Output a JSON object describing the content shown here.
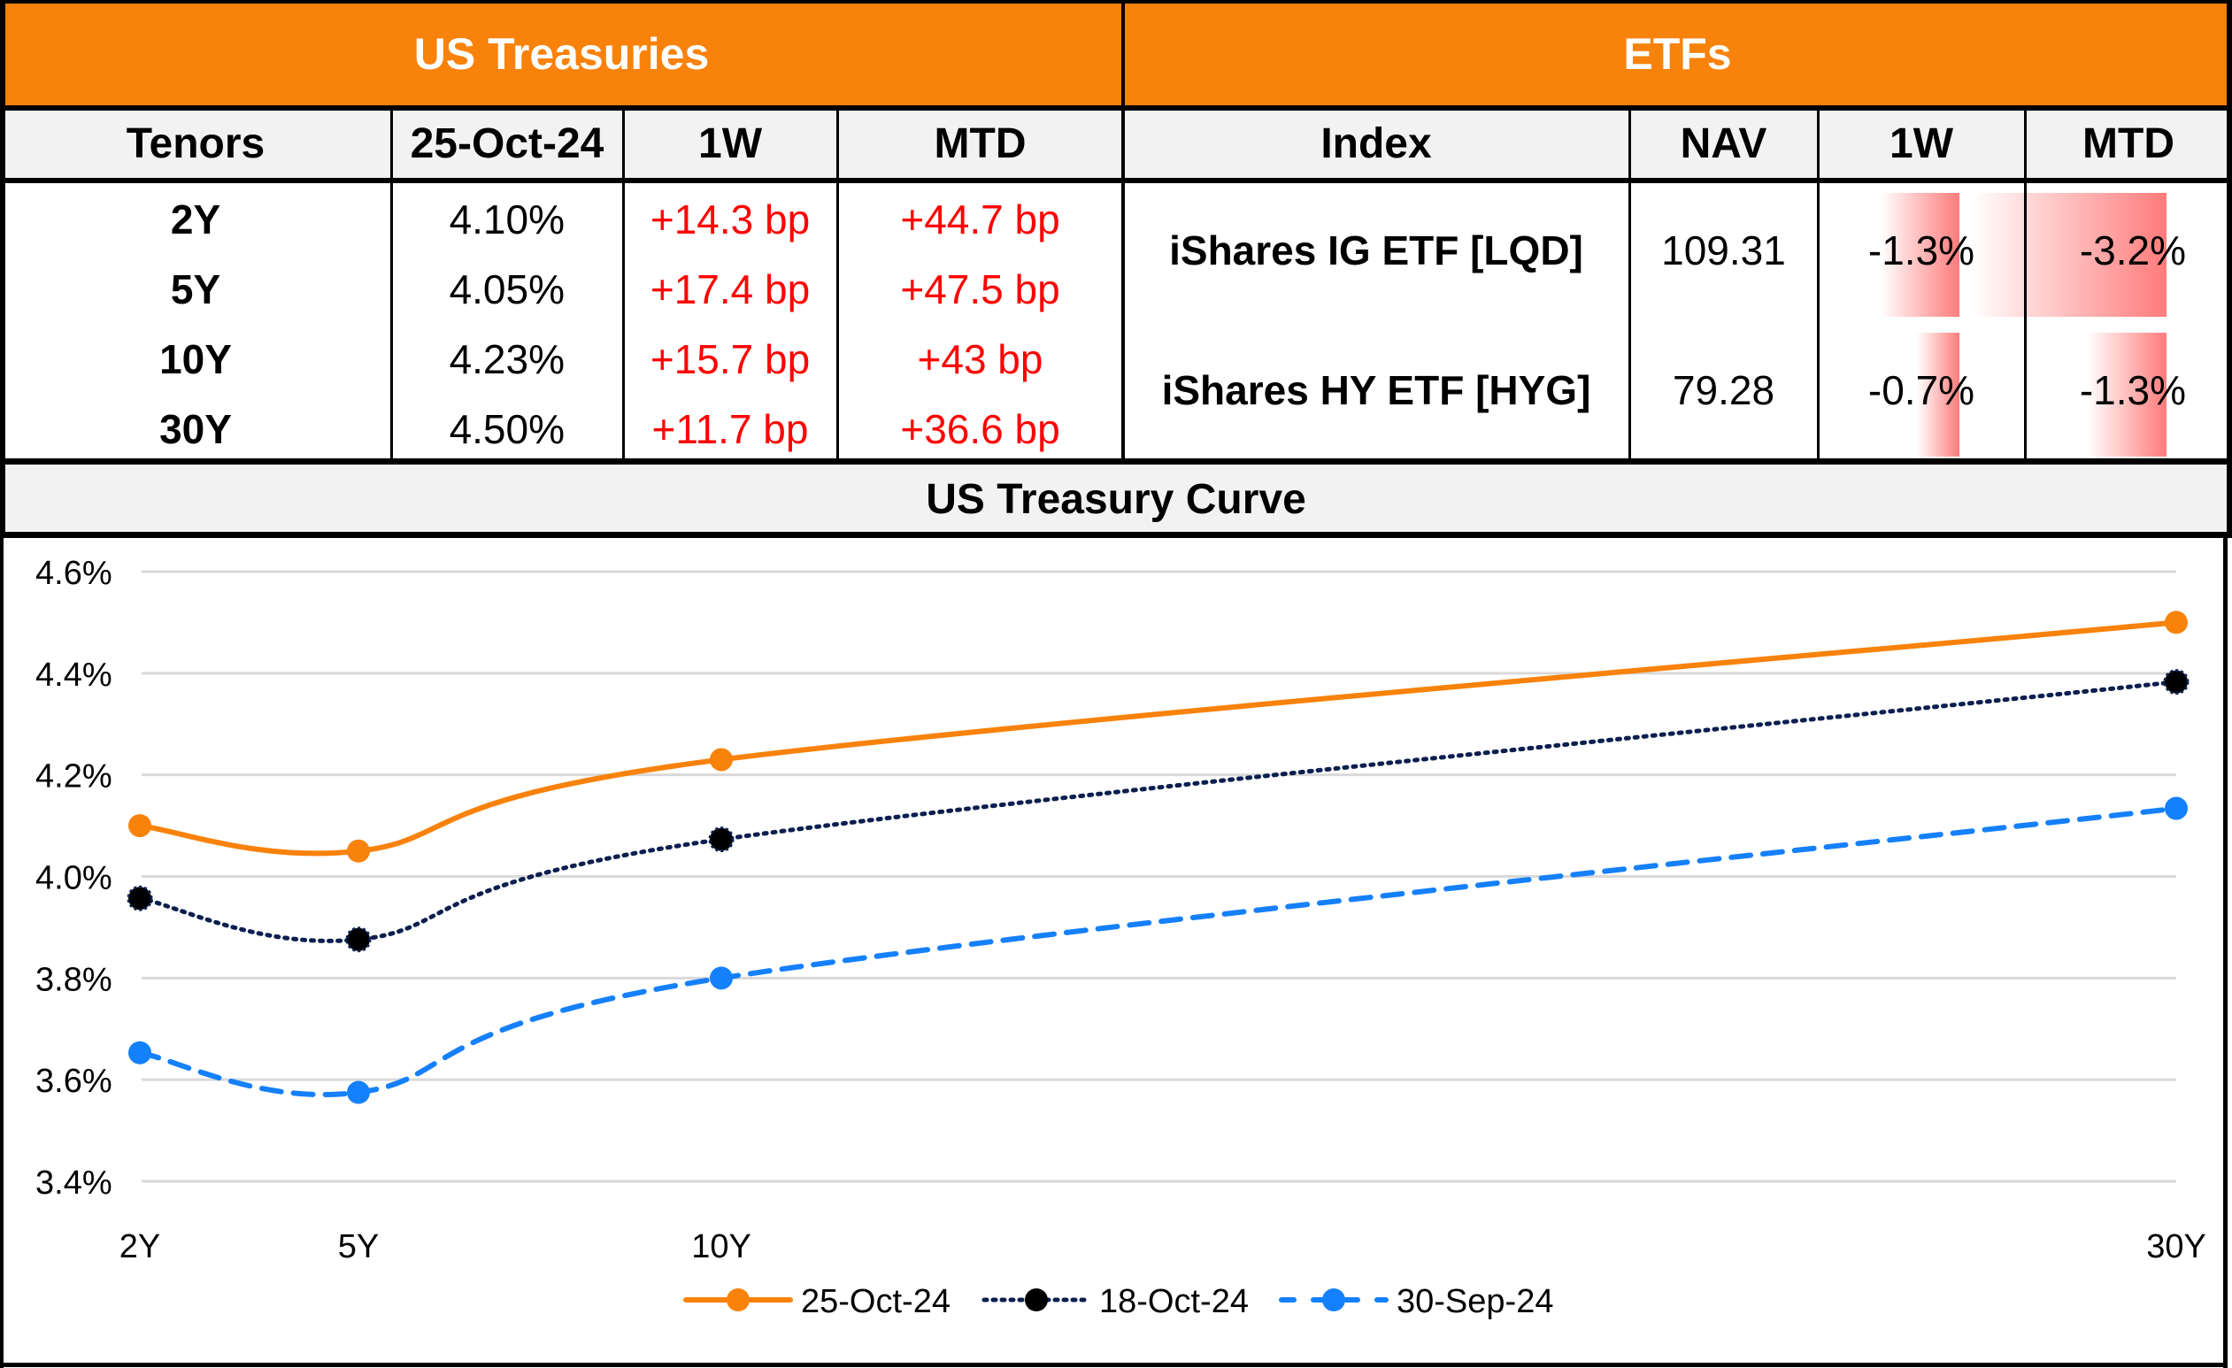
{
  "treasuries": {
    "title": "US Treasuries",
    "headers": [
      "Tenors",
      "25-Oct-24",
      "1W",
      "MTD"
    ],
    "rows": [
      {
        "tenor": "2Y",
        "yield": "4.10%",
        "w1": "+14.3 bp",
        "mtd": "+44.7 bp"
      },
      {
        "tenor": "5Y",
        "yield": "4.05%",
        "w1": "+17.4 bp",
        "mtd": "+47.5 bp"
      },
      {
        "tenor": "10Y",
        "yield": "4.23%",
        "w1": "+15.7 bp",
        "mtd": "+43 bp"
      },
      {
        "tenor": "30Y",
        "yield": "4.50%",
        "w1": "+11.7 bp",
        "mtd": "+36.6 bp"
      }
    ]
  },
  "etfs": {
    "title": "ETFs",
    "headers": [
      "Index",
      "NAV",
      "1W",
      "MTD"
    ],
    "rows": [
      {
        "index": "iShares IG ETF [LQD]",
        "nav": "109.31",
        "w1": "-1.3%",
        "mtd": "-3.2%",
        "w1_value": -1.3,
        "mtd_value": -3.2
      },
      {
        "index": "iShares HY ETF [HYG]",
        "nav": "79.28",
        "w1": "-0.7%",
        "mtd": "-1.3%",
        "w1_value": -0.7,
        "mtd_value": -1.3
      }
    ],
    "databar_color": "#FF7B7B"
  },
  "colors": {
    "header_orange": "#F8820A",
    "subheader_gray": "#F2F2F2",
    "positive_change_red": "#FF0000"
  },
  "chart_data": {
    "type": "line",
    "title": "US Treasury Curve",
    "xlabel": "",
    "ylabel": "",
    "categories": [
      "2Y",
      "5Y",
      "10Y",
      "30Y"
    ],
    "x_numeric": [
      2,
      5,
      10,
      30
    ],
    "ylim": [
      3.4,
      4.6
    ],
    "yticks": [
      3.4,
      3.6,
      3.8,
      4.0,
      4.2,
      4.4,
      4.6
    ],
    "ytick_labels": [
      "3.4%",
      "3.6%",
      "3.8%",
      "4.0%",
      "4.2%",
      "4.4%",
      "4.6%"
    ],
    "grid": true,
    "legend_position": "bottom",
    "smoothed": true,
    "series": [
      {
        "name": "25-Oct-24",
        "values": [
          4.1,
          4.05,
          4.23,
          4.5
        ],
        "color": "#F8820A",
        "dash": "solid"
      },
      {
        "name": "18-Oct-24",
        "values": [
          3.957,
          3.876,
          4.073,
          4.383
        ],
        "color": "#0B1F4F",
        "dash": "dotted"
      },
      {
        "name": "30-Sep-24",
        "values": [
          3.653,
          3.575,
          3.8,
          4.134
        ],
        "color": "#1580FB",
        "dash": "dashed"
      }
    ]
  }
}
